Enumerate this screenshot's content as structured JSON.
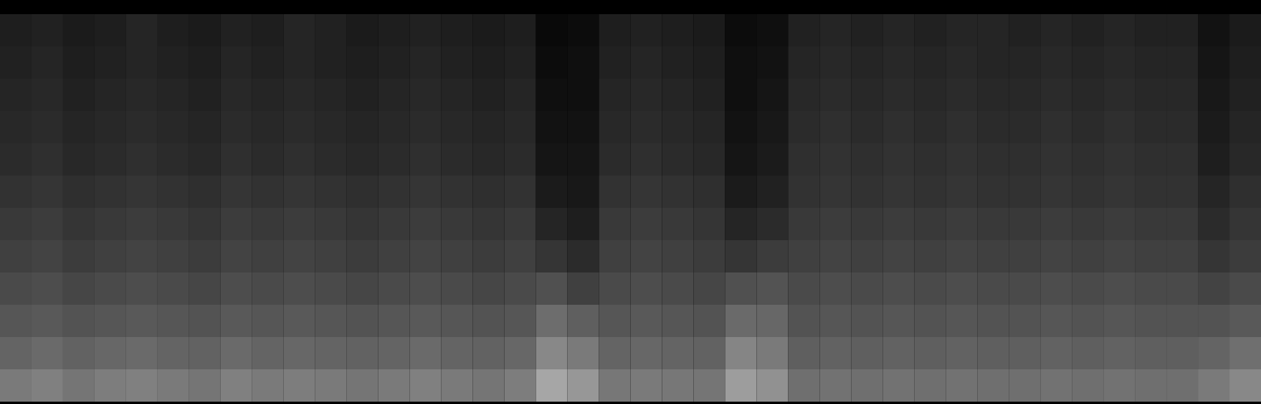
{
  "chart_data": {
    "type": "heatmap",
    "tick_labels": false,
    "color": "greys",
    "zlim": [
      0,
      1
    ],
    "values": [
      [
        0.1,
        0.11,
        0.09,
        0.1,
        0.12,
        0.1,
        0.09,
        0.11,
        0.1,
        0.12,
        0.11,
        0.09,
        0.1,
        0.11,
        0.1,
        0.09,
        0.1,
        0.03,
        0.04,
        0.1,
        0.11,
        0.1,
        0.09,
        0.04,
        0.05,
        0.11,
        0.12,
        0.11,
        0.12,
        0.11,
        0.12,
        0.12,
        0.11,
        0.12,
        0.11,
        0.12,
        0.11,
        0.11,
        0.06,
        0.09
      ],
      [
        0.11,
        0.12,
        0.1,
        0.11,
        0.12,
        0.11,
        0.1,
        0.12,
        0.11,
        0.12,
        0.11,
        0.1,
        0.11,
        0.12,
        0.11,
        0.1,
        0.11,
        0.04,
        0.05,
        0.11,
        0.12,
        0.11,
        0.1,
        0.05,
        0.06,
        0.12,
        0.13,
        0.12,
        0.13,
        0.12,
        0.13,
        0.12,
        0.12,
        0.13,
        0.12,
        0.13,
        0.12,
        0.12,
        0.07,
        0.1
      ],
      [
        0.12,
        0.13,
        0.11,
        0.12,
        0.13,
        0.12,
        0.11,
        0.13,
        0.12,
        0.13,
        0.12,
        0.11,
        0.12,
        0.13,
        0.12,
        0.11,
        0.12,
        0.05,
        0.05,
        0.12,
        0.13,
        0.12,
        0.11,
        0.05,
        0.07,
        0.13,
        0.14,
        0.13,
        0.14,
        0.13,
        0.14,
        0.13,
        0.13,
        0.14,
        0.13,
        0.14,
        0.13,
        0.13,
        0.08,
        0.11
      ],
      [
        0.13,
        0.14,
        0.12,
        0.13,
        0.14,
        0.13,
        0.12,
        0.14,
        0.13,
        0.14,
        0.13,
        0.12,
        0.13,
        0.14,
        0.13,
        0.12,
        0.13,
        0.06,
        0.06,
        0.13,
        0.14,
        0.13,
        0.12,
        0.06,
        0.08,
        0.14,
        0.15,
        0.14,
        0.15,
        0.14,
        0.15,
        0.14,
        0.14,
        0.15,
        0.14,
        0.15,
        0.14,
        0.14,
        0.09,
        0.12
      ],
      [
        0.14,
        0.15,
        0.13,
        0.14,
        0.15,
        0.14,
        0.13,
        0.15,
        0.14,
        0.15,
        0.14,
        0.13,
        0.14,
        0.15,
        0.14,
        0.13,
        0.14,
        0.07,
        0.07,
        0.14,
        0.15,
        0.14,
        0.13,
        0.07,
        0.09,
        0.15,
        0.16,
        0.15,
        0.16,
        0.15,
        0.16,
        0.15,
        0.15,
        0.16,
        0.15,
        0.16,
        0.15,
        0.15,
        0.1,
        0.13
      ],
      [
        0.16,
        0.17,
        0.15,
        0.16,
        0.17,
        0.16,
        0.15,
        0.17,
        0.16,
        0.17,
        0.16,
        0.15,
        0.16,
        0.17,
        0.16,
        0.15,
        0.16,
        0.09,
        0.08,
        0.16,
        0.17,
        0.16,
        0.15,
        0.09,
        0.11,
        0.16,
        0.17,
        0.16,
        0.17,
        0.16,
        0.17,
        0.16,
        0.16,
        0.17,
        0.16,
        0.17,
        0.16,
        0.16,
        0.12,
        0.15
      ],
      [
        0.18,
        0.19,
        0.17,
        0.18,
        0.19,
        0.18,
        0.17,
        0.19,
        0.18,
        0.19,
        0.18,
        0.17,
        0.18,
        0.19,
        0.18,
        0.17,
        0.18,
        0.12,
        0.1,
        0.18,
        0.19,
        0.18,
        0.17,
        0.12,
        0.14,
        0.18,
        0.19,
        0.18,
        0.19,
        0.18,
        0.19,
        0.18,
        0.18,
        0.19,
        0.18,
        0.19,
        0.18,
        0.18,
        0.14,
        0.17
      ],
      [
        0.2,
        0.21,
        0.19,
        0.2,
        0.21,
        0.2,
        0.19,
        0.21,
        0.2,
        0.21,
        0.2,
        0.19,
        0.2,
        0.21,
        0.2,
        0.19,
        0.2,
        0.17,
        0.14,
        0.2,
        0.21,
        0.2,
        0.19,
        0.17,
        0.19,
        0.2,
        0.21,
        0.2,
        0.21,
        0.2,
        0.21,
        0.2,
        0.2,
        0.21,
        0.2,
        0.21,
        0.2,
        0.2,
        0.17,
        0.19
      ],
      [
        0.23,
        0.24,
        0.22,
        0.23,
        0.24,
        0.23,
        0.22,
        0.24,
        0.23,
        0.24,
        0.23,
        0.22,
        0.23,
        0.24,
        0.23,
        0.22,
        0.23,
        0.25,
        0.2,
        0.23,
        0.24,
        0.23,
        0.22,
        0.25,
        0.26,
        0.23,
        0.24,
        0.23,
        0.24,
        0.23,
        0.24,
        0.23,
        0.23,
        0.24,
        0.23,
        0.24,
        0.23,
        0.23,
        0.21,
        0.23
      ],
      [
        0.27,
        0.28,
        0.26,
        0.27,
        0.28,
        0.27,
        0.26,
        0.28,
        0.27,
        0.28,
        0.27,
        0.26,
        0.27,
        0.28,
        0.27,
        0.26,
        0.27,
        0.35,
        0.3,
        0.27,
        0.28,
        0.27,
        0.26,
        0.34,
        0.33,
        0.26,
        0.27,
        0.26,
        0.27,
        0.26,
        0.27,
        0.26,
        0.26,
        0.27,
        0.26,
        0.27,
        0.26,
        0.26,
        0.26,
        0.28
      ],
      [
        0.32,
        0.34,
        0.31,
        0.33,
        0.34,
        0.32,
        0.31,
        0.34,
        0.32,
        0.33,
        0.32,
        0.31,
        0.32,
        0.34,
        0.32,
        0.31,
        0.33,
        0.45,
        0.4,
        0.32,
        0.33,
        0.32,
        0.31,
        0.44,
        0.4,
        0.3,
        0.31,
        0.3,
        0.31,
        0.3,
        0.31,
        0.3,
        0.3,
        0.31,
        0.3,
        0.31,
        0.3,
        0.3,
        0.32,
        0.36
      ],
      [
        0.4,
        0.42,
        0.38,
        0.41,
        0.42,
        0.4,
        0.38,
        0.42,
        0.4,
        0.41,
        0.4,
        0.38,
        0.4,
        0.42,
        0.4,
        0.38,
        0.41,
        0.55,
        0.5,
        0.39,
        0.4,
        0.39,
        0.38,
        0.52,
        0.48,
        0.36,
        0.37,
        0.36,
        0.37,
        0.36,
        0.37,
        0.36,
        0.36,
        0.37,
        0.36,
        0.37,
        0.36,
        0.36,
        0.4,
        0.45
      ]
    ]
  }
}
